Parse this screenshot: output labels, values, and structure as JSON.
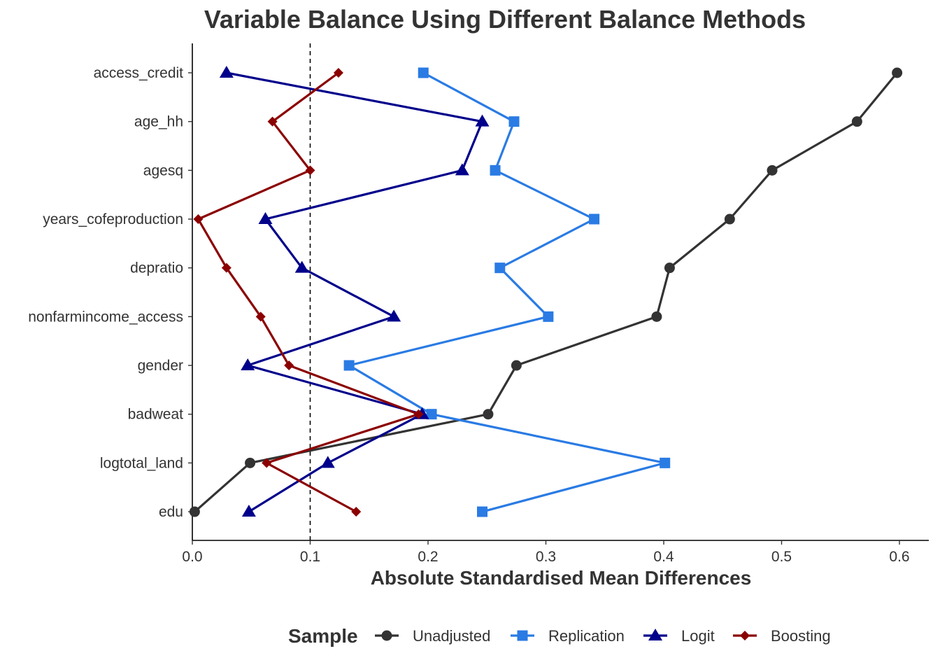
{
  "chart_data": {
    "type": "line",
    "title": "Variable Balance Using Different Balance Methods",
    "xlabel": "Absolute Standardised Mean Differences",
    "ylabel": "",
    "xlim": [
      0,
      0.63
    ],
    "xticks": [
      "0.0",
      "0.1",
      "0.2",
      "0.3",
      "0.4",
      "0.5",
      "0.6"
    ],
    "threshold": 0.1,
    "grid": false,
    "legend_position": "bottom",
    "legend_title": "Sample",
    "categories": [
      "access_credit",
      "age_hh",
      "agesq",
      "years_cofeproduction",
      "depratio",
      "nonfarmincome_access",
      "gender",
      "badweat",
      "logtotal_land",
      "edu"
    ],
    "series": [
      {
        "name": "Unadjusted",
        "color": "#333333",
        "marker": "circle",
        "values": [
          0.598,
          0.564,
          0.492,
          0.456,
          0.405,
          0.394,
          0.275,
          0.251,
          0.049,
          0.002
        ]
      },
      {
        "name": "Replication",
        "color": "#2a7be4",
        "marker": "square",
        "values": [
          0.196,
          0.273,
          0.257,
          0.341,
          0.261,
          0.302,
          0.133,
          0.203,
          0.401,
          0.246
        ]
      },
      {
        "name": "Logit",
        "color": "#00008b",
        "marker": "triangle",
        "values": [
          0.029,
          0.246,
          0.229,
          0.062,
          0.093,
          0.171,
          0.047,
          0.195,
          0.115,
          0.048
        ]
      },
      {
        "name": "Boosting",
        "color": "#8b0000",
        "marker": "diamond",
        "values": [
          0.124,
          0.068,
          0.1,
          0.005,
          0.029,
          0.058,
          0.082,
          0.192,
          0.063,
          0.139
        ]
      }
    ]
  }
}
